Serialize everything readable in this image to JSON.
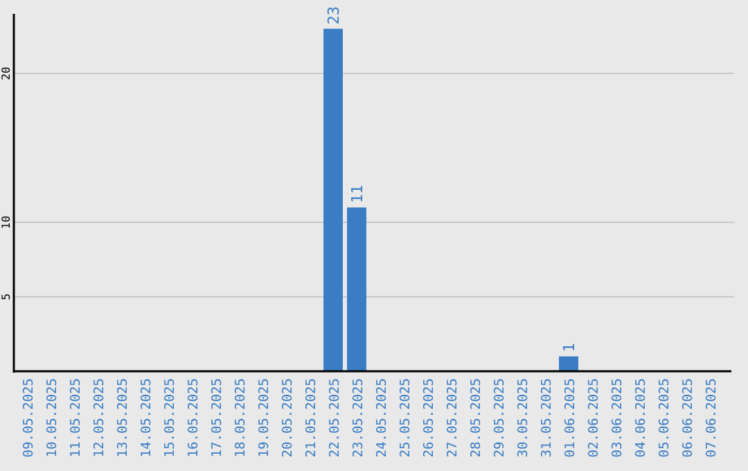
{
  "chart_data": {
    "type": "bar",
    "categories": [
      "09.05.2025",
      "10.05.2025",
      "11.05.2025",
      "12.05.2025",
      "13.05.2025",
      "14.05.2025",
      "15.05.2025",
      "16.05.2025",
      "17.05.2025",
      "18.05.2025",
      "19.05.2025",
      "20.05.2025",
      "21.05.2025",
      "22.05.2025",
      "23.05.2025",
      "24.05.2025",
      "25.05.2025",
      "26.05.2025",
      "27.05.2025",
      "28.05.2025",
      "29.05.2025",
      "30.05.2025",
      "31.05.2025",
      "01.06.2025",
      "02.06.2025",
      "03.06.2025",
      "04.06.2025",
      "05.06.2025",
      "06.06.2025",
      "07.06.2025"
    ],
    "values": [
      0,
      0,
      0,
      0,
      0,
      0,
      0,
      0,
      0,
      0,
      0,
      0,
      0,
      23,
      11,
      0,
      0,
      0,
      0,
      0,
      0,
      0,
      0,
      1,
      0,
      0,
      0,
      0,
      0,
      0
    ],
    "value_labels": [
      null,
      null,
      null,
      null,
      null,
      null,
      null,
      null,
      null,
      null,
      null,
      null,
      null,
      "23",
      "11",
      null,
      null,
      null,
      null,
      null,
      null,
      null,
      null,
      "1",
      null,
      null,
      null,
      null,
      null,
      null
    ],
    "color": "#3a7dc4",
    "ylim": [
      0,
      24
    ],
    "yticks": [
      5,
      10,
      20
    ],
    "grid": "y"
  }
}
